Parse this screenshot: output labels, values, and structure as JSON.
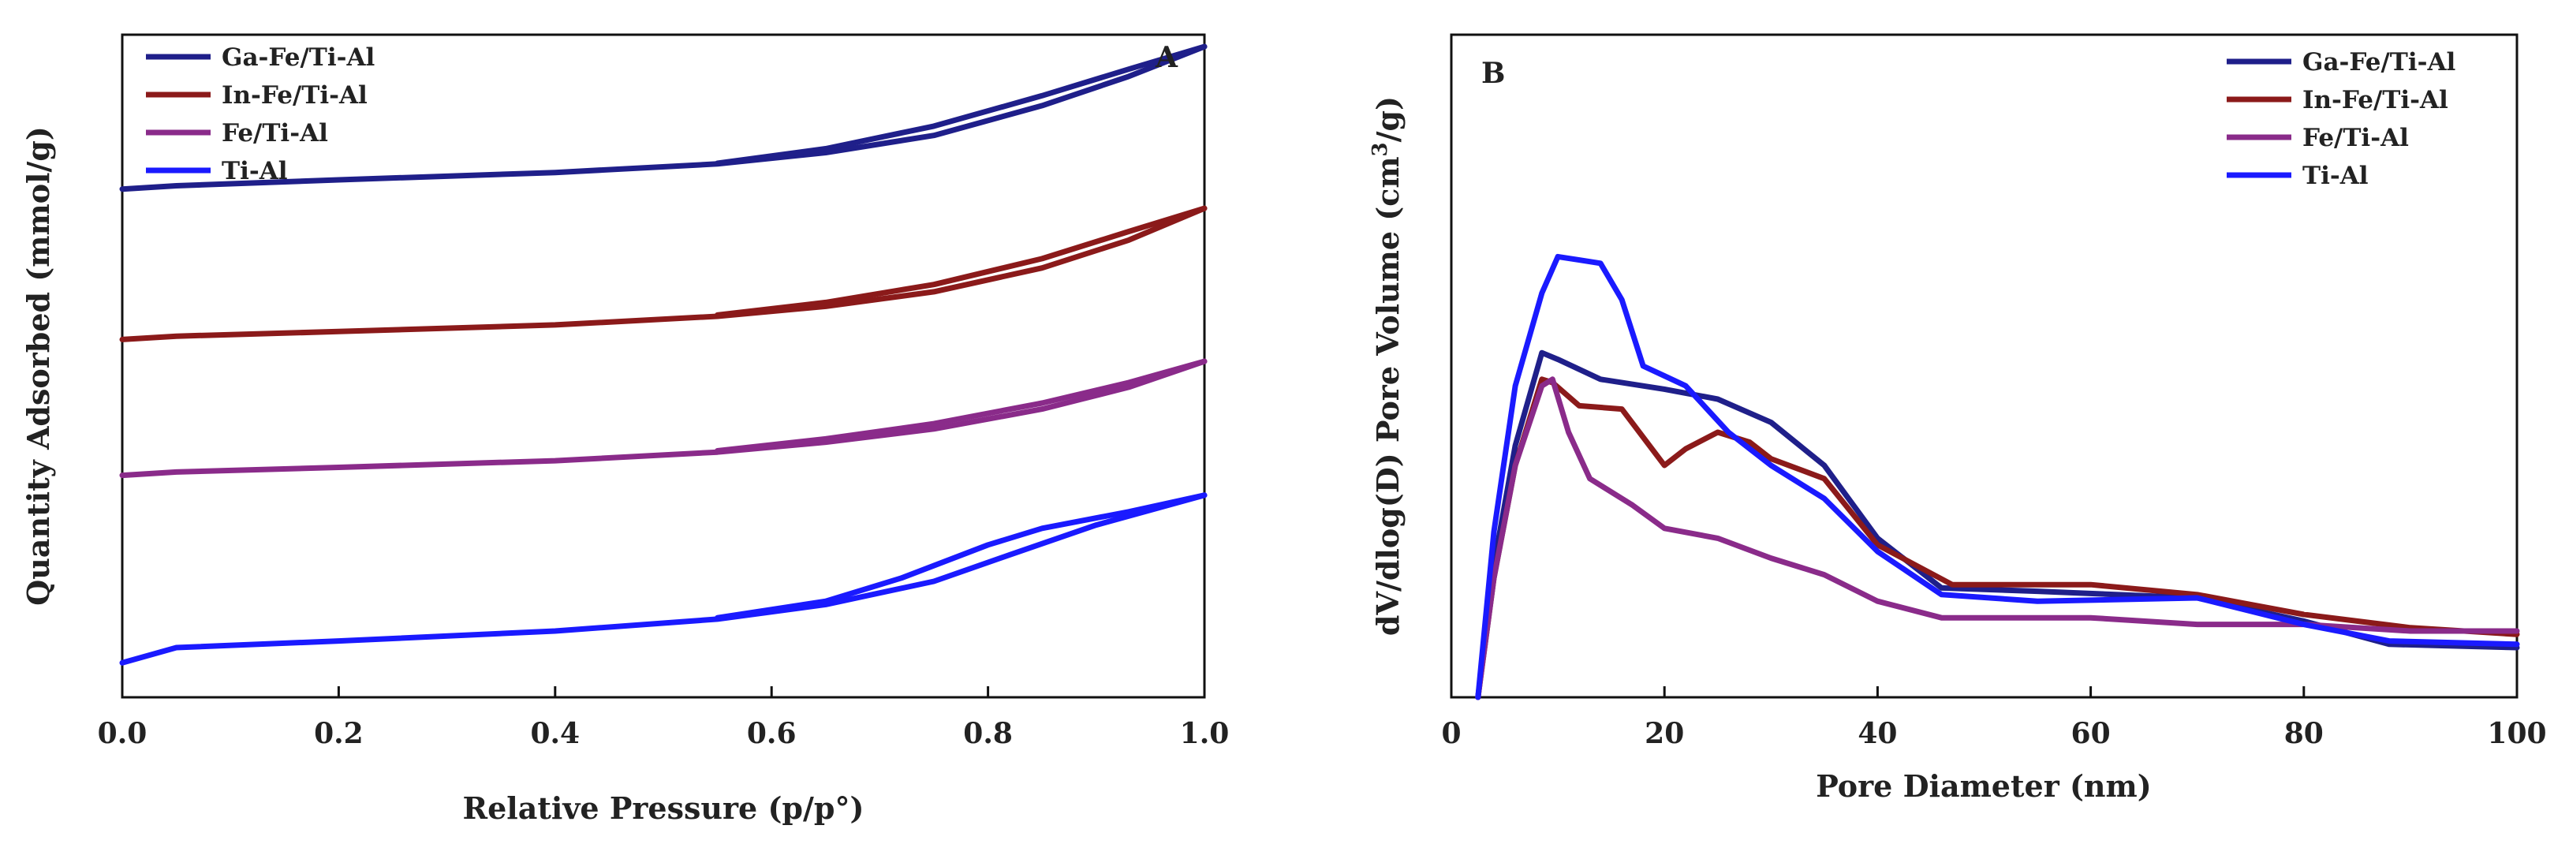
{
  "chart_data": [
    {
      "panel": "A",
      "type": "line",
      "title": "",
      "panel_label": "A",
      "xlabel": "Relative Pressure (p/p°)",
      "ylabel": "Quantity Adsorbed (mmol/g)",
      "xlim": [
        0,
        1
      ],
      "ylim": [
        0,
        1
      ],
      "xticks": [
        0,
        0.2,
        0.4,
        0.6,
        0.8,
        1.0
      ],
      "xtick_labels": [
        "0.0",
        "0.2",
        "0.4",
        "0.6",
        "0.8",
        "1.0"
      ],
      "yticks_shown": false,
      "grid": false,
      "legend_position": "top-left",
      "series": [
        {
          "name": "Ga-Fe/Ti-Al",
          "color": "#1f1f8a",
          "adsorption": [
            [
              0,
              0.767
            ],
            [
              0.05,
              0.772
            ],
            [
              0.2,
              0.781
            ],
            [
              0.4,
              0.792
            ],
            [
              0.55,
              0.805
            ],
            [
              0.65,
              0.822
            ],
            [
              0.75,
              0.848
            ],
            [
              0.85,
              0.893
            ],
            [
              0.93,
              0.937
            ],
            [
              1.0,
              0.982
            ]
          ],
          "desorption": [
            [
              1.0,
              0.982
            ],
            [
              0.93,
              0.948
            ],
            [
              0.85,
              0.908
            ],
            [
              0.75,
              0.862
            ],
            [
              0.65,
              0.828
            ],
            [
              0.55,
              0.806
            ]
          ]
        },
        {
          "name": "In-Fe/Ti-Al",
          "color": "#8b1a1a",
          "adsorption": [
            [
              0,
              0.54
            ],
            [
              0.05,
              0.545
            ],
            [
              0.2,
              0.552
            ],
            [
              0.4,
              0.562
            ],
            [
              0.55,
              0.575
            ],
            [
              0.65,
              0.59
            ],
            [
              0.75,
              0.612
            ],
            [
              0.85,
              0.648
            ],
            [
              0.93,
              0.69
            ],
            [
              1.0,
              0.738
            ]
          ],
          "desorption": [
            [
              1.0,
              0.738
            ],
            [
              0.93,
              0.703
            ],
            [
              0.85,
              0.662
            ],
            [
              0.75,
              0.623
            ],
            [
              0.65,
              0.596
            ],
            [
              0.55,
              0.577
            ]
          ]
        },
        {
          "name": "Fe/Ti-Al",
          "color": "#8a2b8a",
          "adsorption": [
            [
              0,
              0.335
            ],
            [
              0.05,
              0.34
            ],
            [
              0.2,
              0.347
            ],
            [
              0.4,
              0.357
            ],
            [
              0.55,
              0.37
            ],
            [
              0.65,
              0.385
            ],
            [
              0.75,
              0.405
            ],
            [
              0.85,
              0.435
            ],
            [
              0.93,
              0.468
            ],
            [
              1.0,
              0.507
            ]
          ],
          "desorption": [
            [
              1.0,
              0.507
            ],
            [
              0.93,
              0.475
            ],
            [
              0.85,
              0.444
            ],
            [
              0.75,
              0.413
            ],
            [
              0.65,
              0.39
            ],
            [
              0.55,
              0.372
            ]
          ]
        },
        {
          "name": "Ti-Al",
          "color": "#1a1aff",
          "adsorption": [
            [
              0,
              0.052
            ],
            [
              0.05,
              0.075
            ],
            [
              0.2,
              0.085
            ],
            [
              0.4,
              0.1
            ],
            [
              0.55,
              0.118
            ],
            [
              0.65,
              0.14
            ],
            [
              0.75,
              0.175
            ],
            [
              0.82,
              0.215
            ],
            [
              0.9,
              0.26
            ],
            [
              1.0,
              0.305
            ]
          ],
          "desorption": [
            [
              1.0,
              0.305
            ],
            [
              0.93,
              0.28
            ],
            [
              0.85,
              0.255
            ],
            [
              0.8,
              0.23
            ],
            [
              0.72,
              0.18
            ],
            [
              0.65,
              0.145
            ],
            [
              0.55,
              0.12
            ]
          ]
        }
      ]
    },
    {
      "panel": "B",
      "type": "line",
      "title": "",
      "panel_label": "B",
      "xlabel": "Pore Diameter (nm)",
      "ylabel": "dV/dlog(D) Pore Volume (cm³/g)",
      "xlim": [
        0,
        100
      ],
      "ylim": [
        0,
        1
      ],
      "xticks": [
        0,
        20,
        40,
        60,
        80,
        100
      ],
      "xtick_labels": [
        "0",
        "20",
        "40",
        "60",
        "80",
        "100"
      ],
      "yticks_shown": false,
      "grid": false,
      "legend_position": "top-right",
      "series": [
        {
          "name": "Ga-Fe/Ti-Al",
          "color": "#1f1f8a",
          "points": [
            [
              2.5,
              0
            ],
            [
              4,
              0.2
            ],
            [
              6,
              0.38
            ],
            [
              8.5,
              0.52
            ],
            [
              10,
              0.51
            ],
            [
              14,
              0.48
            ],
            [
              20,
              0.465
            ],
            [
              25,
              0.45
            ],
            [
              30,
              0.415
            ],
            [
              35,
              0.35
            ],
            [
              40,
              0.24
            ],
            [
              46,
              0.165
            ],
            [
              55,
              0.16
            ],
            [
              70,
              0.15
            ],
            [
              80,
              0.115
            ],
            [
              88,
              0.08
            ],
            [
              100,
              0.075
            ]
          ]
        },
        {
          "name": "In-Fe/Ti-Al",
          "color": "#8b1a1a",
          "points": [
            [
              2.5,
              0
            ],
            [
              4,
              0.18
            ],
            [
              6,
              0.35
            ],
            [
              8.5,
              0.48
            ],
            [
              9.5,
              0.475
            ],
            [
              12,
              0.44
            ],
            [
              16,
              0.435
            ],
            [
              20,
              0.35
            ],
            [
              22,
              0.375
            ],
            [
              25,
              0.4
            ],
            [
              28,
              0.385
            ],
            [
              30,
              0.36
            ],
            [
              35,
              0.33
            ],
            [
              40,
              0.23
            ],
            [
              47,
              0.17
            ],
            [
              60,
              0.17
            ],
            [
              70,
              0.155
            ],
            [
              80,
              0.125
            ],
            [
              90,
              0.105
            ],
            [
              100,
              0.095
            ]
          ]
        },
        {
          "name": "Fe/Ti-Al",
          "color": "#8a2b8a",
          "points": [
            [
              2.5,
              0
            ],
            [
              4,
              0.18
            ],
            [
              6,
              0.35
            ],
            [
              8.5,
              0.47
            ],
            [
              9.5,
              0.48
            ],
            [
              11,
              0.4
            ],
            [
              13,
              0.33
            ],
            [
              17,
              0.29
            ],
            [
              20,
              0.255
            ],
            [
              25,
              0.24
            ],
            [
              30,
              0.21
            ],
            [
              35,
              0.185
            ],
            [
              40,
              0.145
            ],
            [
              46,
              0.12
            ],
            [
              60,
              0.12
            ],
            [
              70,
              0.11
            ],
            [
              80,
              0.11
            ],
            [
              90,
              0.1
            ],
            [
              100,
              0.1
            ]
          ]
        },
        {
          "name": "Ti-Al",
          "color": "#1a1aff",
          "points": [
            [
              2.5,
              0
            ],
            [
              4,
              0.25
            ],
            [
              6,
              0.47
            ],
            [
              8.5,
              0.61
            ],
            [
              10,
              0.665
            ],
            [
              12,
              0.66
            ],
            [
              14,
              0.655
            ],
            [
              16,
              0.6
            ],
            [
              18,
              0.5
            ],
            [
              20,
              0.485
            ],
            [
              22,
              0.47
            ],
            [
              26,
              0.4
            ],
            [
              30,
              0.35
            ],
            [
              35,
              0.3
            ],
            [
              40,
              0.22
            ],
            [
              46,
              0.155
            ],
            [
              55,
              0.145
            ],
            [
              70,
              0.15
            ],
            [
              80,
              0.11
            ],
            [
              88,
              0.085
            ],
            [
              100,
              0.08
            ]
          ]
        }
      ]
    }
  ]
}
